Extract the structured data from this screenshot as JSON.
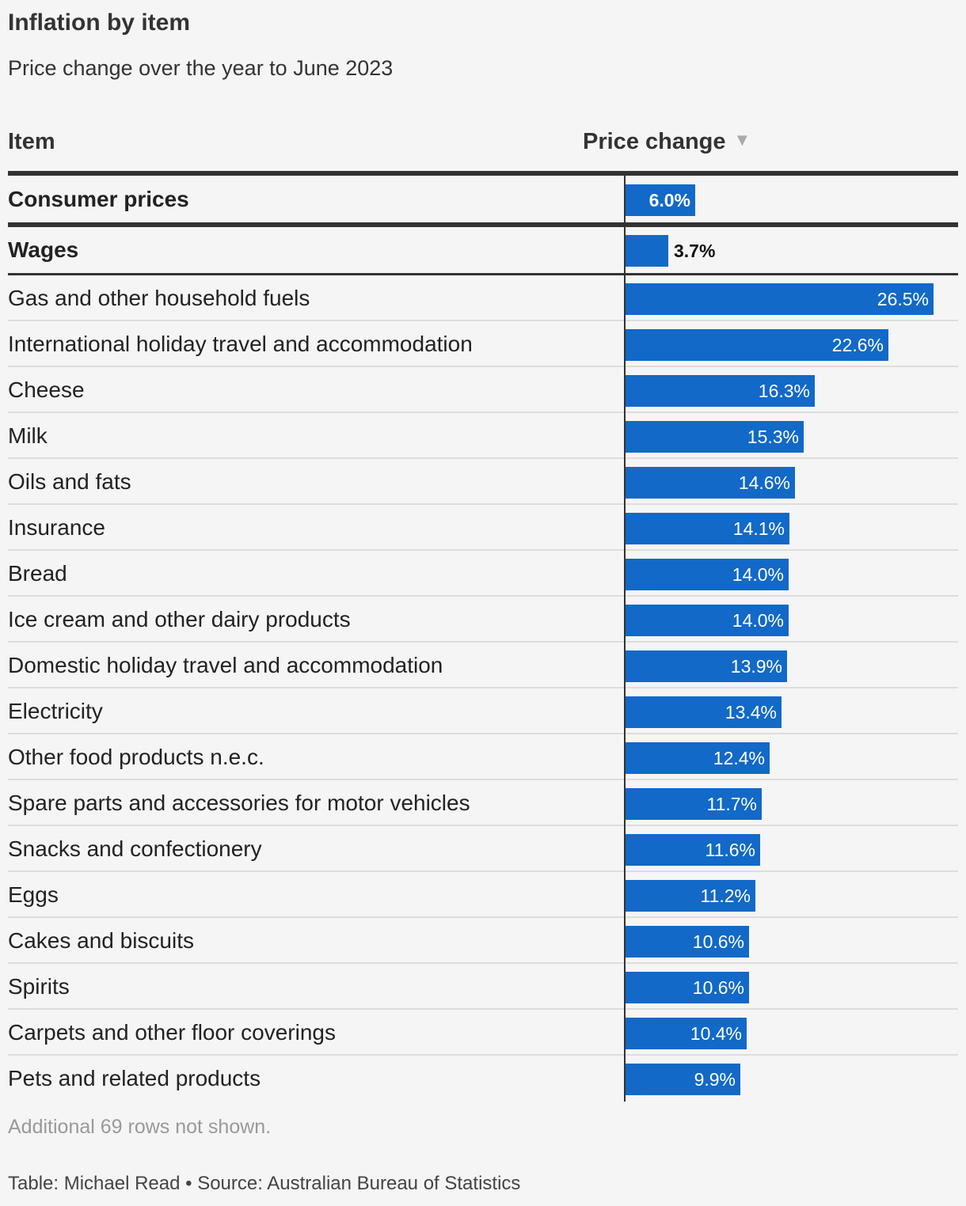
{
  "title": "Inflation by item",
  "subtitle": "Price change over the year to June 2023",
  "columns": {
    "item": "Item",
    "price_change": "Price change",
    "sort_arrow": "▼"
  },
  "note": "Additional 69 rows not shown.",
  "source": "Table: Michael Read • Source: Australian Bureau of Statistics",
  "colors": {
    "bar": "#1269c7",
    "background": "#f5f5f5",
    "rule": "#333333",
    "separator": "#dddddd"
  },
  "chart_data": {
    "type": "bar",
    "orientation": "horizontal",
    "value_suffix": "%",
    "categories": [
      "Consumer prices",
      "Wages",
      "Gas and other household fuels",
      "International holiday travel and accommodation",
      "Cheese",
      "Milk",
      "Oils and fats",
      "Insurance",
      "Bread",
      "Ice cream and other dairy products",
      "Domestic holiday travel and accommodation",
      "Electricity",
      "Other food products n.e.c.",
      "Spare parts and accessories for motor vehicles",
      "Snacks and confectionery",
      "Eggs",
      "Cakes and biscuits",
      "Spirits",
      "Carpets and other floor coverings",
      "Pets and related products"
    ],
    "values": [
      6.0,
      3.7,
      26.5,
      22.6,
      16.3,
      15.3,
      14.6,
      14.1,
      14.0,
      14.0,
      13.9,
      13.4,
      12.4,
      11.7,
      11.6,
      11.2,
      10.6,
      10.6,
      10.4,
      9.9
    ],
    "value_labels": [
      "6.0%",
      "3.7%",
      "26.5%",
      "22.6%",
      "16.3%",
      "15.3%",
      "14.6%",
      "14.1%",
      "14.0%",
      "14.0%",
      "13.9%",
      "13.4%",
      "12.4%",
      "11.7%",
      "11.6%",
      "11.2%",
      "10.6%",
      "10.6%",
      "10.4%",
      "9.9%"
    ],
    "highlighted_rows": [
      "Consumer prices",
      "Wages"
    ]
  }
}
